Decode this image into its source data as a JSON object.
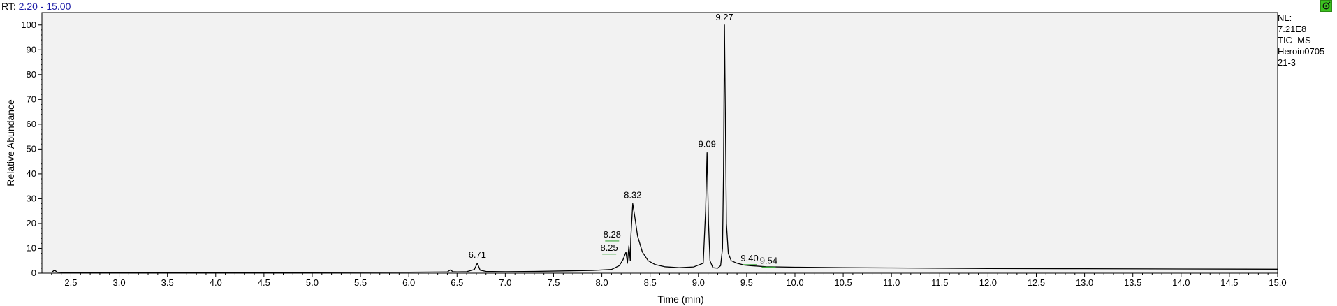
{
  "header": {
    "rt_prefix": "RT:",
    "rt_range": "2.20 - 15.00"
  },
  "nl_info": {
    "line1": "NL:",
    "line2": "7.21E8",
    "line3": "TIC  MS",
    "line4": "Heroin0705",
    "line5": "21-3"
  },
  "corner_icon": "link-icon",
  "colors": {
    "plot_bg": "#f2f2f2",
    "trace": "#000000",
    "label_marker": "#3aa53a",
    "header_range": "#1a1aa6",
    "corner_button": "#3cc21f"
  },
  "chart_data": {
    "type": "line",
    "title": "",
    "xlabel": "Time (min)",
    "ylabel": "Relative Abundance",
    "xlim": [
      2.2,
      15.0
    ],
    "ylim": [
      0,
      105
    ],
    "x_ticks": [
      "2.5",
      "3.0",
      "3.5",
      "4.0",
      "4.5",
      "5.0",
      "5.5",
      "6.0",
      "6.5",
      "7.0",
      "7.5",
      "8.0",
      "8.5",
      "9.0",
      "9.5",
      "10.0",
      "10.5",
      "11.0",
      "11.5",
      "12.0",
      "12.5",
      "13.0",
      "13.5",
      "14.0",
      "14.5",
      "15.0"
    ],
    "y_ticks": [
      "0",
      "10",
      "20",
      "30",
      "40",
      "50",
      "60",
      "70",
      "80",
      "90",
      "100"
    ],
    "grid": false,
    "series": [
      {
        "x": [
          2.3,
          2.33,
          2.36,
          2.4,
          3.0,
          4.0,
          5.0,
          6.0,
          6.4,
          6.43,
          6.46,
          6.5,
          6.6,
          6.68,
          6.71,
          6.74,
          6.8,
          7.0,
          7.3,
          7.6,
          7.9,
          8.1,
          8.18,
          8.22,
          8.25,
          8.265,
          8.28,
          8.295,
          8.3,
          8.32,
          8.34,
          8.37,
          8.42,
          8.48,
          8.55,
          8.65,
          8.8,
          8.95,
          9.05,
          9.075,
          9.09,
          9.105,
          9.12,
          9.15,
          9.2,
          9.23,
          9.25,
          9.26,
          9.27,
          9.28,
          9.29,
          9.31,
          9.34,
          9.4,
          9.47,
          9.54,
          9.7,
          10.0,
          10.5,
          11.0,
          12.0,
          13.0,
          14.0,
          15.0
        ],
        "y": [
          0.3,
          1.2,
          0.4,
          0.3,
          0.3,
          0.3,
          0.3,
          0.4,
          0.5,
          1.3,
          0.6,
          0.5,
          0.6,
          1.5,
          4.0,
          1.2,
          0.7,
          0.6,
          0.7,
          0.9,
          1.1,
          1.5,
          3.0,
          5.5,
          8.5,
          4.0,
          11.0,
          5.0,
          14.0,
          28.0,
          23.0,
          15.0,
          8.5,
          5.0,
          3.5,
          2.6,
          2.2,
          2.5,
          4.0,
          25.0,
          48.5,
          20.0,
          5.0,
          2.2,
          2.0,
          3.0,
          10.0,
          40.0,
          100.0,
          60.0,
          20.0,
          8.0,
          5.0,
          4.0,
          3.3,
          3.0,
          2.6,
          2.4,
          2.2,
          2.1,
          1.9,
          1.8,
          1.7,
          1.6
        ]
      }
    ],
    "peak_labels": [
      {
        "x": 6.71,
        "y": 4.0,
        "label": "6.71"
      },
      {
        "x": 8.25,
        "y": 8.5,
        "label": "8.25"
      },
      {
        "x": 8.28,
        "y": 11.0,
        "label": "8.28"
      },
      {
        "x": 8.32,
        "y": 28.0,
        "label": "8.32"
      },
      {
        "x": 9.09,
        "y": 48.5,
        "label": "9.09"
      },
      {
        "x": 9.27,
        "y": 100.0,
        "label": "9.27"
      },
      {
        "x": 9.4,
        "y": 4.0,
        "label": "9.40"
      },
      {
        "x": 9.54,
        "y": 3.0,
        "label": "9.54"
      }
    ]
  }
}
